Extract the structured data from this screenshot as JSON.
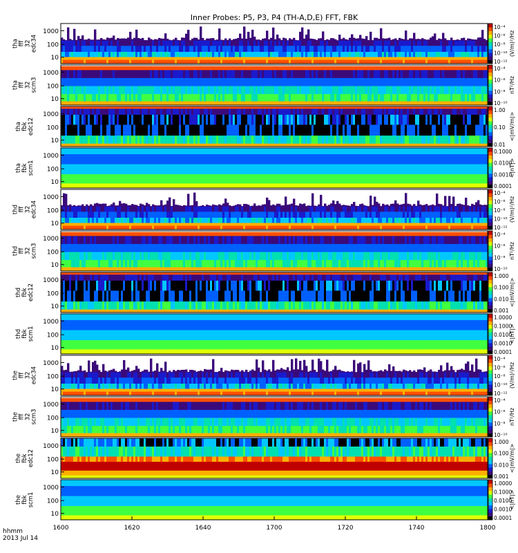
{
  "title": "Inner Probes: P5, P3, P4 (TH-A,D,E) FFT, FBK",
  "footer": {
    "time_label": "hhmm",
    "date_label": "2013 Jul 14"
  },
  "x_axis": {
    "ticks": [
      "1600",
      "1620",
      "1640",
      "1700",
      "1720",
      "1740",
      "1800"
    ]
  },
  "colors": [
    "#000000",
    "#3b0a7a",
    "#1a1acc",
    "#0060ff",
    "#00c8ff",
    "#00e0b0",
    "#40ff40",
    "#e0ff00",
    "#ffb000",
    "#ff5000",
    "#c00000"
  ],
  "chart_data": {
    "type": "heatmap",
    "x": [
      "1600",
      "1620",
      "1640",
      "1700",
      "1720",
      "1740",
      "1800"
    ],
    "panels": [
      {
        "probe": "tha",
        "ylabel": [
          "tha",
          "fff",
          "32",
          "edc34"
        ],
        "yticks": [
          "1000",
          "100",
          "10"
        ],
        "cbar_label": "(V/m)²/Hz",
        "cbar_ticks": [
          "10⁻⁴",
          "10⁻⁶",
          "10⁻⁸",
          "10⁻¹⁰",
          "10⁻¹²"
        ],
        "style": "fff_e"
      },
      {
        "probe": "tha",
        "ylabel": [
          "tha",
          "fff",
          "32",
          "scm3"
        ],
        "yticks": [
          "1000",
          "100",
          "10"
        ],
        "cbar_label": "nT²/Hz",
        "cbar_ticks": [
          "10⁻⁴",
          "10⁻⁶",
          "10⁻⁸",
          "10⁻¹⁰"
        ],
        "style": "fff_b"
      },
      {
        "probe": "tha",
        "ylabel": [
          "tha",
          "fbk",
          "edc12"
        ],
        "yticks": [
          "1000",
          "100",
          "10"
        ],
        "cbar_label": "<|mV/m|>",
        "cbar_ticks": [
          "1.00",
          "0.10",
          "0.01"
        ],
        "style": "fbk_e"
      },
      {
        "probe": "tha",
        "ylabel": [
          "tha",
          "fbk",
          "scm1"
        ],
        "yticks": [
          "1000",
          "100",
          "10"
        ],
        "cbar_label": "<|nT|>",
        "cbar_ticks": [
          "0.1000",
          "0.0100",
          "0.0010",
          "0.0001"
        ],
        "style": "fbk_b"
      },
      {
        "probe": "thd",
        "ylabel": [
          "thd",
          "fff",
          "32",
          "edc34"
        ],
        "yticks": [
          "1000",
          "100",
          "10"
        ],
        "cbar_label": "(V/m)²/Hz",
        "cbar_ticks": [
          "10⁻⁴",
          "10⁻⁶",
          "10⁻⁸",
          "10⁻¹⁰",
          "10⁻¹²"
        ],
        "style": "fff_e"
      },
      {
        "probe": "thd",
        "ylabel": [
          "thd",
          "fff",
          "32",
          "scm3"
        ],
        "yticks": [
          "1000",
          "100",
          "10"
        ],
        "cbar_label": "nT²/Hz",
        "cbar_ticks": [
          "10⁻⁴",
          "10⁻⁶",
          "10⁻⁸",
          "10⁻¹⁰"
        ],
        "style": "fff_b"
      },
      {
        "probe": "thd",
        "ylabel": [
          "thd",
          "fbk",
          "edc12"
        ],
        "yticks": [
          "1000",
          "100",
          "10"
        ],
        "cbar_label": "<|mV/m|>",
        "cbar_ticks": [
          "1.000",
          "0.100",
          "0.010",
          "0.001"
        ],
        "style": "fbk_e"
      },
      {
        "probe": "thd",
        "ylabel": [
          "thd",
          "fbk",
          "scm1"
        ],
        "yticks": [
          "1000",
          "100",
          "10"
        ],
        "cbar_label": "<|nT|>",
        "cbar_ticks": [
          "1.0000",
          "0.1000",
          "0.0100",
          "0.0010",
          "0.0001"
        ],
        "style": "fbk_b"
      },
      {
        "probe": "the",
        "ylabel": [
          "the",
          "fff",
          "32",
          "edc34"
        ],
        "yticks": [
          "1000",
          "100",
          "10"
        ],
        "cbar_label": "(V/m)²/Hz",
        "cbar_ticks": [
          "10⁻⁴",
          "10⁻⁶",
          "10⁻⁸",
          "10⁻¹⁰",
          "10⁻¹²"
        ],
        "style": "fff_e"
      },
      {
        "probe": "the",
        "ylabel": [
          "the",
          "fff",
          "32",
          "scm3"
        ],
        "yticks": [
          "1000",
          "100",
          "10"
        ],
        "cbar_label": "nT²/Hz",
        "cbar_ticks": [
          "10⁻⁴",
          "10⁻⁶",
          "10⁻⁸",
          "10⁻¹⁰"
        ],
        "style": "fff_b"
      },
      {
        "probe": "the",
        "ylabel": [
          "the",
          "fbk",
          "edc12"
        ],
        "yticks": [
          "1000",
          "100",
          "10"
        ],
        "cbar_label": "<|mV/m|>",
        "cbar_ticks": [
          "1.000",
          "0.100",
          "0.010",
          "0.001"
        ],
        "style": "fbk_e_sat"
      },
      {
        "probe": "the",
        "ylabel": [
          "the",
          "fbk",
          "scm1"
        ],
        "yticks": [
          "1000",
          "100",
          "10"
        ],
        "cbar_label": "<|nT|>",
        "cbar_ticks": [
          "1.0000",
          "0.1000",
          "0.0100",
          "0.0010",
          "0.0001"
        ],
        "style": "fbk_b"
      }
    ]
  }
}
